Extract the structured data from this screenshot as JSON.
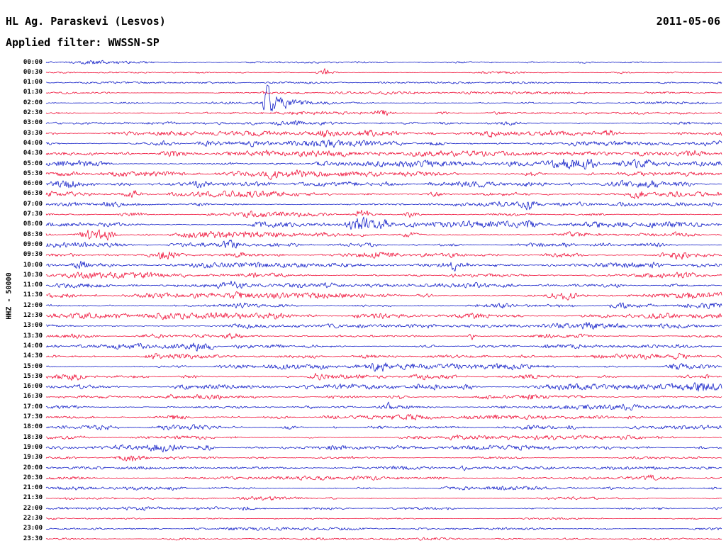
{
  "header": {
    "station": "HL Ag. Paraskevi (Lesvos)",
    "date": "2011-05-06",
    "filter_label": "Applied filter: WWSSN-SP"
  },
  "axis": {
    "vertical_label": "HHZ - 50000"
  },
  "chart_data": {
    "type": "line",
    "subtype": "helicorder-seismogram",
    "title": "HL Ag. Paraskevi (Lesvos)",
    "date": "2011-05-06",
    "filter": "WWSSN-SP",
    "channel_scale_label": "HHZ - 50000",
    "row_interval_minutes": 30,
    "legend_position": "none",
    "grid": false,
    "colors": {
      "blue": "#1420c8",
      "red": "#ef1038"
    },
    "rows": [
      {
        "label": "00:00",
        "color": "blue",
        "amp": 1.2,
        "events": [
          {
            "x": 0.068,
            "amp": 3,
            "w": 10
          }
        ]
      },
      {
        "label": "00:30",
        "color": "red",
        "amp": 1.2,
        "events": [
          {
            "x": 0.414,
            "amp": 9,
            "w": 9
          }
        ]
      },
      {
        "label": "01:00",
        "color": "blue",
        "amp": 1.1,
        "events": []
      },
      {
        "label": "01:30",
        "color": "red",
        "amp": 1.2,
        "events": [
          {
            "x": 0.325,
            "amp": 2.5,
            "w": 6
          }
        ]
      },
      {
        "label": "02:00",
        "color": "blue",
        "amp": 1.3,
        "events": [
          {
            "x": 0.325,
            "amp": 45,
            "w": 3,
            "decay": 20
          },
          {
            "x": 0.713,
            "amp": 2.5,
            "w": 8
          }
        ]
      },
      {
        "label": "02:30",
        "color": "red",
        "amp": 1.5,
        "events": [
          {
            "x": 0.498,
            "amp": 5,
            "w": 9
          },
          {
            "x": 0.587,
            "amp": 3,
            "w": 8
          }
        ]
      },
      {
        "label": "03:00",
        "color": "blue",
        "amp": 1.7,
        "events": [
          {
            "x": 0.346,
            "amp": 4,
            "w": 12
          },
          {
            "x": 0.372,
            "amp": 3.5,
            "w": 7
          }
        ]
      },
      {
        "label": "03:30",
        "color": "red",
        "amp": 2.2,
        "events": [
          {
            "x": 0.414,
            "amp": 4,
            "w": 9
          },
          {
            "x": 0.477,
            "amp": 3.5,
            "w": 9
          },
          {
            "x": 0.656,
            "amp": 6,
            "w": 9
          },
          {
            "x": 0.745,
            "amp": 4,
            "w": 10
          },
          {
            "x": 0.839,
            "amp": 5,
            "w": 9
          }
        ]
      },
      {
        "label": "04:00",
        "color": "blue",
        "amp": 2.6,
        "events": [
          {
            "x": 0.173,
            "amp": 6,
            "w": 12
          },
          {
            "x": 0.42,
            "amp": 3,
            "w": 9
          }
        ]
      },
      {
        "label": "04:30",
        "color": "red",
        "amp": 2.6,
        "events": [
          {
            "x": 0.184,
            "amp": 7,
            "w": 11
          },
          {
            "x": 0.325,
            "amp": 4,
            "w": 9
          },
          {
            "x": 0.955,
            "amp": 8,
            "w": 11
          }
        ]
      },
      {
        "label": "05:00",
        "color": "blue",
        "amp": 2.8,
        "events": [
          {
            "x": 0.771,
            "amp": 12,
            "w": 16
          },
          {
            "x": 0.803,
            "amp": 10,
            "w": 8
          },
          {
            "x": 0.876,
            "amp": 6,
            "w": 12
          }
        ]
      },
      {
        "label": "05:30",
        "color": "red",
        "amp": 3.0,
        "events": [
          {
            "x": 0.33,
            "amp": 8,
            "w": 9
          },
          {
            "x": 0.383,
            "amp": 6,
            "w": 12
          },
          {
            "x": 0.719,
            "amp": 5,
            "w": 9
          }
        ]
      },
      {
        "label": "06:00",
        "color": "blue",
        "amp": 2.8,
        "events": [
          {
            "x": 0.031,
            "amp": 8,
            "w": 11
          },
          {
            "x": 0.226,
            "amp": 7,
            "w": 9
          },
          {
            "x": 0.713,
            "amp": 6,
            "w": 9
          },
          {
            "x": 0.944,
            "amp": 5,
            "w": 9
          }
        ]
      },
      {
        "label": "06:30",
        "color": "red",
        "amp": 2.8,
        "events": [
          {
            "x": 0.131,
            "amp": 8,
            "w": 9
          },
          {
            "x": 0.577,
            "amp": 5,
            "w": 9
          },
          {
            "x": 0.876,
            "amp": 6,
            "w": 9
          }
        ]
      },
      {
        "label": "07:00",
        "color": "blue",
        "amp": 2.6,
        "events": [
          {
            "x": 0.226,
            "amp": 4,
            "w": 9
          },
          {
            "x": 0.713,
            "amp": 8,
            "w": 9
          }
        ]
      },
      {
        "label": "07:30",
        "color": "red",
        "amp": 2.8,
        "events": [
          {
            "x": 0.467,
            "amp": 9,
            "w": 9
          },
          {
            "x": 0.54,
            "amp": 7,
            "w": 7
          }
        ]
      },
      {
        "label": "08:00",
        "color": "blue",
        "amp": 2.8,
        "events": [
          {
            "x": 0.467,
            "amp": 13,
            "w": 14
          },
          {
            "x": 0.498,
            "amp": 9,
            "w": 7
          },
          {
            "x": 0.713,
            "amp": 5,
            "w": 9
          }
        ]
      },
      {
        "label": "08:30",
        "color": "red",
        "amp": 2.8,
        "events": [
          {
            "x": 0.068,
            "amp": 13,
            "w": 12
          },
          {
            "x": 0.094,
            "amp": 9,
            "w": 7
          },
          {
            "x": 0.54,
            "amp": 5,
            "w": 9
          }
        ]
      },
      {
        "label": "09:00",
        "color": "blue",
        "amp": 2.6,
        "events": [
          {
            "x": 0.278,
            "amp": 4,
            "w": 9
          },
          {
            "x": 0.603,
            "amp": 3,
            "w": 7
          }
        ]
      },
      {
        "label": "09:30",
        "color": "red",
        "amp": 2.8,
        "events": [
          {
            "x": 0.173,
            "amp": 7,
            "w": 12
          },
          {
            "x": 0.939,
            "amp": 5,
            "w": 9
          }
        ]
      },
      {
        "label": "10:00",
        "color": "blue",
        "amp": 2.8,
        "events": [
          {
            "x": 0.052,
            "amp": 6,
            "w": 11
          },
          {
            "x": 0.603,
            "amp": 14,
            "w": 2,
            "decay": 6
          }
        ]
      },
      {
        "label": "10:30",
        "color": "red",
        "amp": 2.6,
        "events": [
          {
            "x": 0.603,
            "amp": 4,
            "w": 6
          }
        ]
      },
      {
        "label": "11:00",
        "color": "blue",
        "amp": 2.8,
        "events": [
          {
            "x": 0.283,
            "amp": 6,
            "w": 11
          },
          {
            "x": 0.42,
            "amp": 4,
            "w": 9
          },
          {
            "x": 0.929,
            "amp": 4,
            "w": 9
          }
        ]
      },
      {
        "label": "11:30",
        "color": "red",
        "amp": 3.0,
        "events": [
          {
            "x": 0.399,
            "amp": 4,
            "w": 8
          },
          {
            "x": 0.561,
            "amp": 4,
            "w": 8
          },
          {
            "x": 0.766,
            "amp": 8,
            "w": 13
          }
        ]
      },
      {
        "label": "12:00",
        "color": "blue",
        "amp": 2.8,
        "events": [
          {
            "x": 0.351,
            "amp": 3,
            "w": 8
          },
          {
            "x": 0.85,
            "amp": 5,
            "w": 9
          }
        ]
      },
      {
        "label": "12:30",
        "color": "red",
        "amp": 2.6,
        "events": [
          {
            "x": 0.173,
            "amp": 6,
            "w": 9
          },
          {
            "x": 0.63,
            "amp": 3,
            "w": 8
          }
        ]
      },
      {
        "label": "13:00",
        "color": "blue",
        "amp": 2.4,
        "events": [
          {
            "x": 0.299,
            "amp": 4,
            "w": 8
          },
          {
            "x": 0.803,
            "amp": 4,
            "w": 9
          }
        ]
      },
      {
        "label": "13:30",
        "color": "red",
        "amp": 2.4,
        "events": [
          {
            "x": 0.273,
            "amp": 5,
            "w": 8
          },
          {
            "x": 0.63,
            "amp": 9,
            "w": 3
          }
        ]
      },
      {
        "label": "14:00",
        "color": "blue",
        "amp": 2.6,
        "events": [
          {
            "x": 0.226,
            "amp": 10,
            "w": 11
          },
          {
            "x": 0.241,
            "amp": 7,
            "w": 6
          }
        ]
      },
      {
        "label": "14:30",
        "color": "red",
        "amp": 2.4,
        "events": [
          {
            "x": 0.157,
            "amp": 5,
            "w": 9
          },
          {
            "x": 0.939,
            "amp": 4,
            "w": 8
          }
        ]
      },
      {
        "label": "15:00",
        "color": "blue",
        "amp": 2.6,
        "events": [
          {
            "x": 0.493,
            "amp": 8,
            "w": 8
          },
          {
            "x": 0.929,
            "amp": 5,
            "w": 9
          }
        ]
      },
      {
        "label": "15:30",
        "color": "red",
        "amp": 2.8,
        "events": [
          {
            "x": 0.042,
            "amp": 7,
            "w": 11
          },
          {
            "x": 0.409,
            "amp": 6,
            "w": 8
          },
          {
            "x": 0.561,
            "amp": 7,
            "w": 11
          }
        ]
      },
      {
        "label": "16:00",
        "color": "blue",
        "amp": 2.6,
        "events": [
          {
            "x": 0.624,
            "amp": 5,
            "w": 9
          },
          {
            "x": 0.965,
            "amp": 7,
            "w": 11
          }
        ]
      },
      {
        "label": "16:30",
        "color": "red",
        "amp": 2.6,
        "events": [
          {
            "x": 0.184,
            "amp": 5,
            "w": 9
          },
          {
            "x": 0.519,
            "amp": 5,
            "w": 8
          }
        ]
      },
      {
        "label": "17:00",
        "color": "blue",
        "amp": 2.4,
        "events": [
          {
            "x": 0.504,
            "amp": 9,
            "w": 8
          }
        ]
      },
      {
        "label": "17:30",
        "color": "red",
        "amp": 2.6,
        "events": [
          {
            "x": 0.189,
            "amp": 8,
            "w": 9
          },
          {
            "x": 0.42,
            "amp": 4,
            "w": 8
          }
        ]
      },
      {
        "label": "18:00",
        "color": "blue",
        "amp": 2.4,
        "events": [
          {
            "x": 0.362,
            "amp": 5,
            "w": 8
          },
          {
            "x": 0.488,
            "amp": 5,
            "w": 8
          }
        ]
      },
      {
        "label": "18:30",
        "color": "red",
        "amp": 2.2,
        "events": [
          {
            "x": 0.603,
            "amp": 3,
            "w": 8
          }
        ]
      },
      {
        "label": "19:00",
        "color": "blue",
        "amp": 2.2,
        "events": [
          {
            "x": 0.173,
            "amp": 7,
            "w": 13
          },
          {
            "x": 0.236,
            "amp": 6,
            "w": 7
          },
          {
            "x": 0.745,
            "amp": 6,
            "w": 3
          }
        ]
      },
      {
        "label": "19:30",
        "color": "red",
        "amp": 2.0,
        "events": [
          {
            "x": 0.126,
            "amp": 8,
            "w": 11
          }
        ]
      },
      {
        "label": "20:00",
        "color": "blue",
        "amp": 1.8,
        "events": [
          {
            "x": 0.619,
            "amp": 3,
            "w": 8
          }
        ]
      },
      {
        "label": "20:30",
        "color": "red",
        "amp": 1.8,
        "events": [
          {
            "x": 0.892,
            "amp": 5,
            "w": 9
          }
        ]
      },
      {
        "label": "21:00",
        "color": "blue",
        "amp": 1.8,
        "events": [
          {
            "x": 0.189,
            "amp": 4,
            "w": 8
          }
        ]
      },
      {
        "label": "21:30",
        "color": "red",
        "amp": 1.6,
        "events": []
      },
      {
        "label": "22:00",
        "color": "blue",
        "amp": 1.6,
        "events": [
          {
            "x": 0.294,
            "amp": 3.5,
            "w": 6
          }
        ]
      },
      {
        "label": "22:30",
        "color": "red",
        "amp": 1.4,
        "events": []
      },
      {
        "label": "23:00",
        "color": "blue",
        "amp": 1.4,
        "events": []
      },
      {
        "label": "23:30",
        "color": "red",
        "amp": 1.3,
        "events": []
      }
    ]
  }
}
